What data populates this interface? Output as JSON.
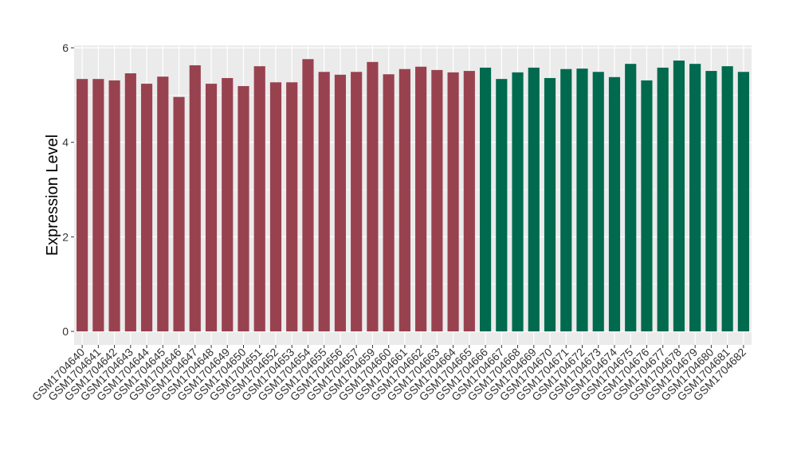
{
  "chart_data": {
    "type": "bar",
    "title": "",
    "xlabel": "",
    "ylabel": "Expression Level",
    "ylim": [
      0,
      6
    ],
    "yticks": [
      0,
      2,
      4,
      6
    ],
    "grid": true,
    "background": "#EBEBEB",
    "categories": [
      "GSM1704640",
      "GSM1704641",
      "GSM1704642",
      "GSM1704643",
      "GSM1704644",
      "GSM1704645",
      "GSM1704646",
      "GSM1704647",
      "GSM1704648",
      "GSM1704649",
      "GSM1704650",
      "GSM1704651",
      "GSM1704652",
      "GSM1704653",
      "GSM1704654",
      "GSM1704655",
      "GSM1704656",
      "GSM1704657",
      "GSM1704659",
      "GSM1704660",
      "GSM1704661",
      "GSM1704662",
      "GSM1704663",
      "GSM1704664",
      "GSM1704665",
      "GSM1704666",
      "GSM1704667",
      "GSM1704668",
      "GSM1704669",
      "GSM1704670",
      "GSM1704671",
      "GSM1704672",
      "GSM1704673",
      "GSM1704674",
      "GSM1704675",
      "GSM1704676",
      "GSM1704677",
      "GSM1704678",
      "GSM1704679",
      "GSM1704680",
      "GSM1704681",
      "GSM1704682"
    ],
    "values": [
      5.34,
      5.34,
      5.31,
      5.46,
      5.24,
      5.39,
      4.96,
      5.63,
      5.24,
      5.36,
      5.19,
      5.61,
      5.27,
      5.27,
      5.76,
      5.49,
      5.43,
      5.49,
      5.7,
      5.44,
      5.55,
      5.6,
      5.53,
      5.48,
      5.51,
      5.58,
      5.34,
      5.48,
      5.58,
      5.36,
      5.55,
      5.56,
      5.49,
      5.38,
      5.66,
      5.31,
      5.58,
      5.73,
      5.66,
      5.51,
      5.61,
      5.49
    ],
    "groups": [
      {
        "color": "#99424F",
        "count": 25
      },
      {
        "color": "#006A4E",
        "count": 17
      }
    ]
  }
}
